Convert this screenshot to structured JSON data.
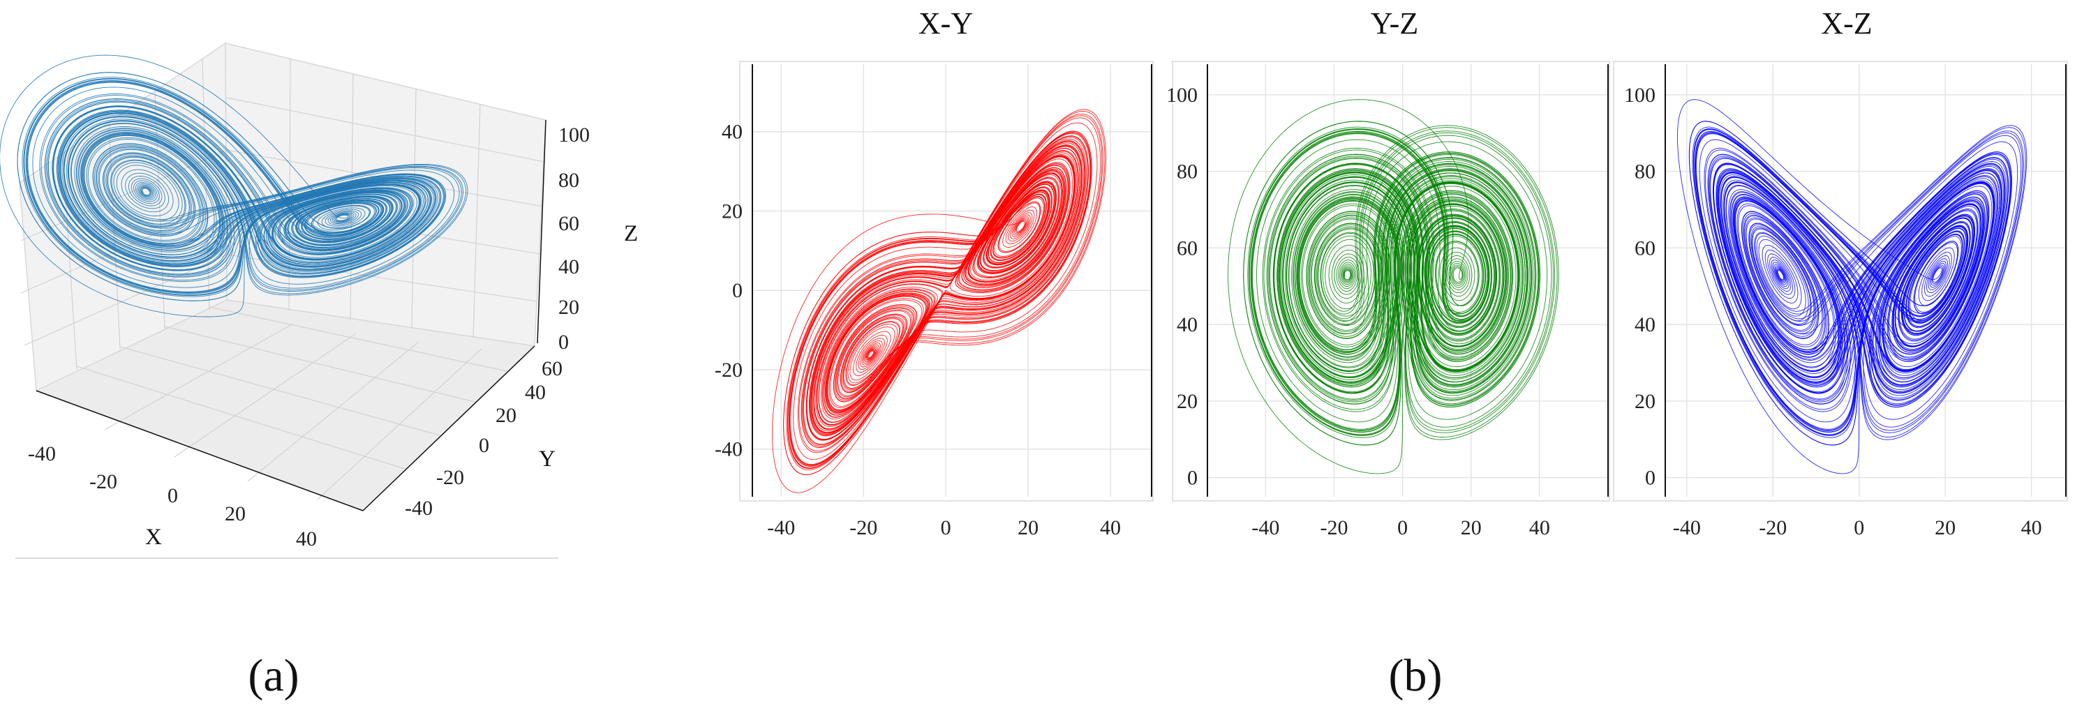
{
  "chart_data": [
    {
      "id": "a",
      "type": "scatter",
      "projection": "3d",
      "color": "#1f77b4",
      "xlabel": "X",
      "ylabel": "Y",
      "zlabel": "Z",
      "x_ticks": [
        "-40",
        "-20",
        "0",
        "20",
        "40"
      ],
      "y_ticks": [
        "-40",
        "-20",
        "0",
        "20",
        "40",
        "60"
      ],
      "z_ticks": [
        "0",
        "20",
        "40",
        "60",
        "80",
        "100"
      ],
      "xlim": [
        -45,
        50
      ],
      "ylim": [
        -50,
        60
      ],
      "zlim": [
        0,
        100
      ],
      "caption": "(a)",
      "series": [
        {
          "x": [
            -40,
            -35,
            -28,
            -22,
            -15,
            -10,
            -5,
            0,
            5,
            12,
            20,
            28,
            35,
            40,
            42,
            38,
            30,
            22,
            12,
            3,
            -8,
            -18,
            -28,
            -36,
            -40
          ],
          "y": [
            -45,
            -40,
            -30,
            -22,
            -15,
            -10,
            -5,
            0,
            6,
            14,
            22,
            30,
            38,
            44,
            46,
            40,
            32,
            22,
            12,
            2,
            -10,
            -22,
            -32,
            -40,
            -45
          ],
          "z": [
            80,
            86,
            88,
            82,
            72,
            62,
            52,
            44,
            50,
            62,
            74,
            84,
            90,
            94,
            90,
            80,
            70,
            58,
            46,
            36,
            30,
            34,
            46,
            62,
            80
          ]
        }
      ]
    },
    {
      "id": "b-xy",
      "type": "line",
      "title": "X-Y",
      "color": "#ff0000",
      "x_ticks": [
        "-40",
        "-20",
        "0",
        "20",
        "40"
      ],
      "y_ticks": [
        "-40",
        "-20",
        "0",
        "20",
        "40"
      ],
      "xlim": [
        -47,
        50
      ],
      "ylim": [
        -52,
        57
      ],
      "series": [
        {
          "x": [
            -43,
            -41,
            -37,
            -30,
            -22,
            -15,
            -8,
            0,
            8,
            16,
            24,
            30,
            36,
            40,
            43,
            44,
            43,
            40,
            34,
            26,
            18,
            10,
            2,
            -6,
            -14,
            -22,
            -30,
            -37,
            -42,
            -43
          ],
          "y": [
            -45,
            -50,
            -52,
            -48,
            -40,
            -33,
            -26,
            -20,
            -14,
            -8,
            -2,
            4,
            10,
            18,
            28,
            40,
            50,
            54,
            55,
            50,
            44,
            38,
            32,
            26,
            18,
            10,
            0,
            -12,
            -28,
            -45
          ]
        }
      ]
    },
    {
      "id": "b-yz",
      "type": "line",
      "title": "Y-Z",
      "color": "#008000",
      "x_ticks": [
        "-40",
        "-20",
        "0",
        "20",
        "40"
      ],
      "y_ticks": [
        "0",
        "20",
        "40",
        "60",
        "80",
        "100"
      ],
      "xlim": [
        -57,
        60
      ],
      "ylim": [
        -5,
        108
      ],
      "series": [
        {
          "x": [
            0,
            -5,
            -15,
            -28,
            -40,
            -48,
            -52,
            -50,
            -44,
            -35,
            -22,
            -10,
            0,
            10,
            22,
            35,
            46,
            53,
            55,
            52,
            44,
            32,
            20,
            8,
            0
          ],
          "y": [
            75,
            82,
            90,
            94,
            91,
            82,
            66,
            48,
            30,
            14,
            3,
            0,
            5,
            1,
            3,
            14,
            32,
            52,
            70,
            86,
            96,
            101,
            98,
            87,
            75
          ]
        }
      ]
    },
    {
      "id": "b-xz",
      "type": "line",
      "title": "X-Z",
      "color": "#0000ff",
      "x_ticks": [
        "-40",
        "-20",
        "0",
        "20",
        "40"
      ],
      "y_ticks": [
        "0",
        "20",
        "40",
        "60",
        "80",
        "100"
      ],
      "xlim": [
        -45,
        48
      ],
      "ylim": [
        -5,
        108
      ],
      "series": [
        {
          "x": [
            -40,
            -38,
            -32,
            -25,
            -18,
            -12,
            -6,
            -2,
            0,
            2,
            6,
            14,
            22,
            30,
            36,
            40,
            42,
            40,
            34,
            26,
            18,
            10,
            3,
            -4,
            -12,
            -22,
            -32,
            -39,
            -40
          ],
          "y": [
            93,
            94,
            88,
            80,
            72,
            64,
            56,
            52,
            54,
            52,
            58,
            66,
            76,
            86,
            95,
            101,
            100,
            80,
            60,
            42,
            26,
            12,
            3,
            2,
            12,
            28,
            50,
            74,
            93
          ]
        }
      ]
    }
  ],
  "captions": {
    "a": "(a)",
    "b": "(b)"
  }
}
